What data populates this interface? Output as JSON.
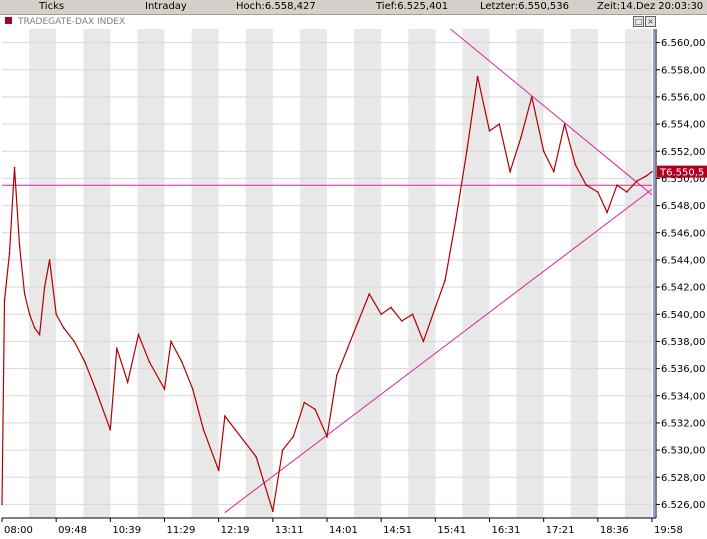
{
  "header": {
    "tab_ticks": "Ticks",
    "tab_intraday": "Intraday",
    "high_text": "Hoch:6.558,427",
    "low_text": "Tief:6.525,401",
    "last_text": "Letzter:6.550,536",
    "time_text": "Zeit:14.Dez 20:03:30"
  },
  "colors": {
    "price_line": "#b00000",
    "trend_line": "#e020a0",
    "last_label_bg": "#b00020",
    "band_shade": "#e8e8e8"
  },
  "icons": [
    "menu-icon",
    "maximize-icon",
    "close-icon"
  ],
  "chart_data": {
    "type": "line",
    "title": "TRADEGATE-DAX INDEX",
    "ylim": [
      6525.0,
      6561.0
    ],
    "y_ticks": [
      "6.526,00",
      "6.528,00",
      "6.530,00",
      "6.532,00",
      "6.534,00",
      "6.536,00",
      "6.538,00",
      "6.540,00",
      "6.542,00",
      "6.544,00",
      "6.546,00",
      "6.548,00",
      "6.550,00",
      "6.552,00",
      "6.554,00",
      "6.556,00",
      "6.558,00",
      "6.560,00"
    ],
    "y_tick_values": [
      6526,
      6528,
      6530,
      6532,
      6534,
      6536,
      6538,
      6540,
      6542,
      6544,
      6546,
      6548,
      6550,
      6552,
      6554,
      6556,
      6558,
      6560
    ],
    "x_ticks": [
      "08:00",
      "09:48",
      "10:39",
      "11:29",
      "12:19",
      "13:11",
      "14:01",
      "14:51",
      "15:41",
      "16:31",
      "17:21",
      "18:36",
      "19:58"
    ],
    "last_value_label": "T6.550,5",
    "last_value": 6550.5,
    "horizontal_line": 6549.5,
    "series": [
      {
        "x": [
          "08:00",
          "08:05",
          "08:15",
          "08:25",
          "08:35",
          "08:45",
          "08:55",
          "09:05",
          "09:15",
          "09:25",
          "09:35",
          "09:48",
          "09:55",
          "10:05",
          "10:15",
          "10:25",
          "10:39",
          "10:45",
          "10:55",
          "11:05",
          "11:15",
          "11:29",
          "11:35",
          "11:45",
          "11:55",
          "12:05",
          "12:19",
          "12:25",
          "12:35",
          "12:45",
          "12:55",
          "13:11",
          "13:20",
          "13:30",
          "13:40",
          "13:50",
          "14:01",
          "14:10",
          "14:20",
          "14:30",
          "14:40",
          "14:51",
          "15:00",
          "15:10",
          "15:20",
          "15:30",
          "15:41",
          "15:50",
          "16:00",
          "16:10",
          "16:20",
          "16:31",
          "16:40",
          "16:50",
          "17:00",
          "17:10",
          "17:21",
          "17:35",
          "17:50",
          "18:05",
          "18:20",
          "18:36",
          "18:50",
          "19:05",
          "19:20",
          "19:35",
          "19:50",
          "19:58"
        ],
        "y": [
          6526.0,
          6541.0,
          6544.5,
          6550.8,
          6545.0,
          6541.5,
          6540.0,
          6539.0,
          6538.5,
          6542.0,
          6544.0,
          6540.0,
          6539.0,
          6538.0,
          6536.5,
          6534.5,
          6531.5,
          6537.5,
          6535.0,
          6538.5,
          6536.5,
          6534.5,
          6538.0,
          6536.5,
          6534.5,
          6531.5,
          6528.5,
          6532.5,
          6531.5,
          6530.5,
          6529.5,
          6525.5,
          6530.0,
          6531.0,
          6533.5,
          6533.0,
          6531.0,
          6535.5,
          6537.5,
          6539.5,
          6541.5,
          6540.0,
          6540.5,
          6539.5,
          6540.0,
          6538.0,
          6540.5,
          6542.5,
          6547.0,
          6552.0,
          6557.5,
          6553.5,
          6554.0,
          6550.5,
          6553.0,
          6556.0,
          6552.0,
          6550.5,
          6554.0,
          6551.0,
          6549.5,
          6549.0,
          6547.5,
          6549.5,
          6549.0,
          6549.8,
          6550.2,
          6550.5
        ]
      }
    ],
    "trendlines": [
      {
        "from": [
          "12:25",
          6525.4
        ],
        "to": [
          "19:58",
          6549.2
        ]
      },
      {
        "from": [
          "15:55",
          6561.0
        ],
        "to": [
          "19:58",
          6548.8
        ]
      }
    ]
  }
}
